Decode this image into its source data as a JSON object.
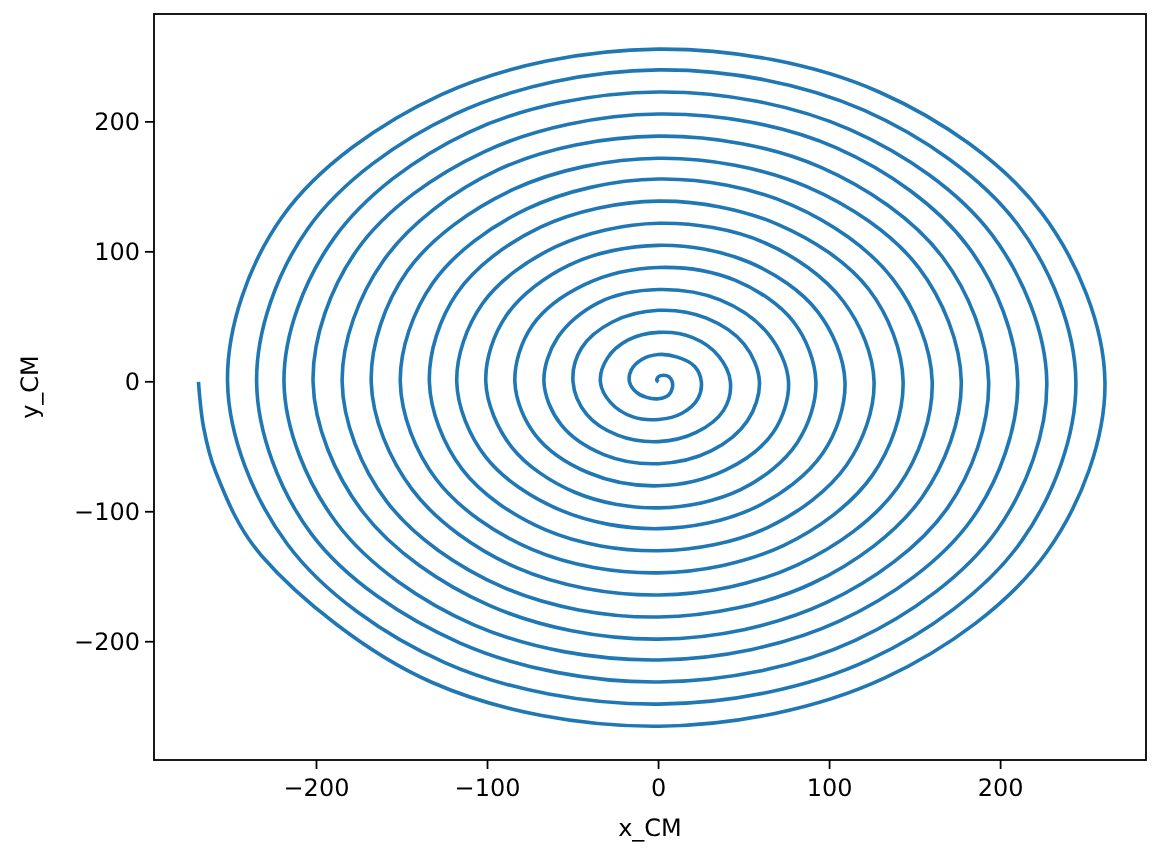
{
  "chart_data": {
    "type": "line",
    "xlabel": "x_CM",
    "ylabel": "y_CM",
    "x": [
      0,
      -1,
      -1,
      0,
      3,
      6,
      8,
      8,
      6,
      0,
      -7,
      -13,
      -17,
      -16,
      -10,
      0,
      11,
      21,
      25,
      23,
      14,
      0,
      -15,
      -28,
      -34,
      -30,
      -18,
      0,
      20,
      35,
      42,
      38,
      22,
      0,
      -24,
      -42,
      -50,
      -45,
      -27,
      0,
      28,
      50,
      59,
      52,
      31,
      0,
      -32,
      -57,
      -67,
      -59,
      -35,
      0,
      36,
      64,
      76,
      67,
      39,
      0,
      -41,
      -72,
      -84,
      -74,
      -43,
      0,
      45,
      79,
      92,
      81,
      48,
      0,
      -49,
      -86,
      -101,
      -89,
      -52,
      0,
      53,
      93,
      109,
      96,
      56,
      0,
      -57,
      -101,
      -118,
      -103,
      -60,
      0,
      62,
      108,
      126,
      110,
      64,
      0,
      -66,
      -115,
      -134,
      -118,
      -69,
      0,
      70,
      123,
      143,
      125,
      73,
      0,
      -74,
      -130,
      -151,
      -132,
      -77,
      0,
      78,
      137,
      160,
      140,
      81,
      0,
      -83,
      -144,
      -168,
      -147,
      -85,
      0,
      87,
      152,
      177,
      154,
      90,
      0,
      -91,
      -159,
      -185,
      -161,
      -94,
      0,
      95,
      166,
      193,
      169,
      98,
      0,
      -99,
      -173,
      -202,
      -176,
      -102,
      0,
      104,
      181,
      210,
      183,
      106,
      0,
      -108,
      -188,
      -219,
      -190,
      -111,
      0,
      112,
      195,
      227,
      198,
      115,
      0,
      -116,
      -203,
      -235,
      -205,
      -119,
      0,
      120,
      210,
      244,
      212,
      123,
      0,
      -125,
      -217,
      -252,
      -220,
      -127,
      0,
      129,
      224,
      261,
      227,
      132,
      0,
      -133,
      -232,
      -259,
      -266,
      -269
    ],
    "series": [
      {
        "color": "#1f77b4",
        "values": [
          0,
          1,
          2,
          4,
          5,
          4,
          0,
          -5,
          -10,
          -13,
          -12,
          -8,
          0,
          9,
          17,
          21,
          19,
          12,
          0,
          -13,
          -24,
          -29,
          -27,
          -16,
          0,
          18,
          32,
          38,
          34,
          20,
          0,
          -22,
          -39,
          -46,
          -41,
          -25,
          0,
          26,
          46,
          55,
          49,
          29,
          0,
          -30,
          -53,
          -63,
          -56,
          -33,
          0,
          34,
          61,
          71,
          63,
          37,
          0,
          -39,
          -68,
          -80,
          -70,
          -41,
          0,
          43,
          75,
          88,
          78,
          46,
          0,
          -47,
          -83,
          -97,
          -85,
          -50,
          0,
          51,
          90,
          105,
          92,
          54,
          0,
          -55,
          -97,
          -113,
          -99,
          -58,
          0,
          60,
          104,
          122,
          107,
          62,
          0,
          -64,
          -112,
          -130,
          -114,
          -67,
          0,
          68,
          119,
          139,
          121,
          71,
          0,
          -72,
          -126,
          -147,
          -129,
          -75,
          0,
          76,
          133,
          156,
          136,
          79,
          0,
          -81,
          -141,
          -164,
          -143,
          -83,
          0,
          85,
          148,
          172,
          150,
          88,
          0,
          -89,
          -155,
          -181,
          -158,
          -92,
          0,
          93,
          163,
          189,
          165,
          96,
          0,
          -97,
          -170,
          -198,
          -172,
          -100,
          0,
          102,
          177,
          206,
          180,
          104,
          0,
          -106,
          -184,
          -214,
          -187,
          -109,
          0,
          110,
          192,
          223,
          194,
          113,
          0,
          -114,
          -199,
          -231,
          -201,
          -117,
          0,
          118,
          206,
          240,
          209,
          121,
          0,
          -123,
          -214,
          -248,
          -216,
          -125,
          0,
          127,
          221,
          256,
          223,
          130,
          0,
          -131,
          -228,
          -265,
          -231,
          -134,
          -69,
          -35,
          0
        ]
      }
    ],
    "xlim": [
      -295,
      285
    ],
    "ylim": [
      -291,
      283
    ],
    "xticks": [
      {
        "value": -200,
        "label": "−200"
      },
      {
        "value": -100,
        "label": "−100"
      },
      0,
      100,
      200
    ],
    "yticks": [
      {
        "value": -200,
        "label": "−200"
      },
      {
        "value": -100,
        "label": "−100"
      },
      0,
      100,
      200
    ]
  }
}
